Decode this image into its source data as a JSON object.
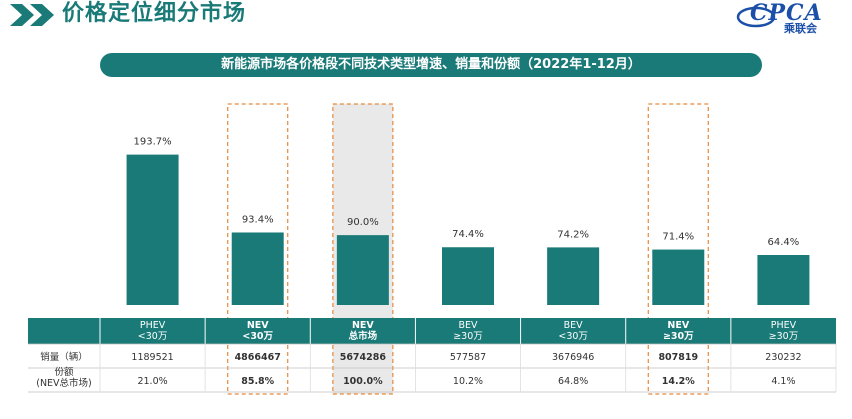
{
  "header": {
    "title": "价格定位细分市场",
    "logo_text": "CPCA",
    "logo_sub": "乘联会"
  },
  "banner": {
    "text": "新能源市场各价格段不同技术类型增速、销量和份额（2022年1-12月）"
  },
  "colors": {
    "bar": "#1a7a78",
    "banner": "#1a7a78",
    "highlight_border": "#e8893a",
    "highlight_fill": "#e9e9e9",
    "table_header": "#1a7a78"
  },
  "chart_data": {
    "type": "bar",
    "title": "新能源市场各价格段不同技术类型增速、销量和份额（2022年1-12月）",
    "categories": [
      "PHEV <30万",
      "NEV <30万",
      "NEV 总市场",
      "BEV ≥30万",
      "BEV <30万",
      "NEV ≥30万",
      "PHEV ≥30万"
    ],
    "category_lines": [
      [
        "PHEV",
        "<30万"
      ],
      [
        "NEV",
        "<30万"
      ],
      [
        "NEV",
        "总市场"
      ],
      [
        "BEV",
        "≥30万"
      ],
      [
        "BEV",
        "<30万"
      ],
      [
        "NEV",
        "≥30万"
      ],
      [
        "PHEV",
        "≥30万"
      ]
    ],
    "bold_categories": [
      false,
      true,
      true,
      false,
      false,
      true,
      false
    ],
    "highlighted": [
      false,
      true,
      true,
      false,
      false,
      true,
      false
    ],
    "highlight_filled": [
      false,
      false,
      true,
      false,
      false,
      false,
      false
    ],
    "growth_values": [
      193.7,
      93.4,
      90.0,
      74.4,
      74.2,
      71.4,
      64.4
    ],
    "growth_labels": [
      "193.7%",
      "93.4%",
      "90.0%",
      "74.4%",
      "74.2%",
      "71.4%",
      "64.4%"
    ],
    "ylim": [
      0,
      230
    ],
    "table": {
      "rows": [
        {
          "label_lines": [
            "销量（辆）"
          ],
          "values": [
            "1189521",
            "4866467",
            "5674286",
            "577587",
            "3676946",
            "807819",
            "230232"
          ]
        },
        {
          "label_lines": [
            "份额",
            "(NEV总市场)"
          ],
          "values": [
            "21.0%",
            "85.8%",
            "100.0%",
            "10.2%",
            "64.8%",
            "14.2%",
            "4.1%"
          ]
        }
      ]
    }
  }
}
